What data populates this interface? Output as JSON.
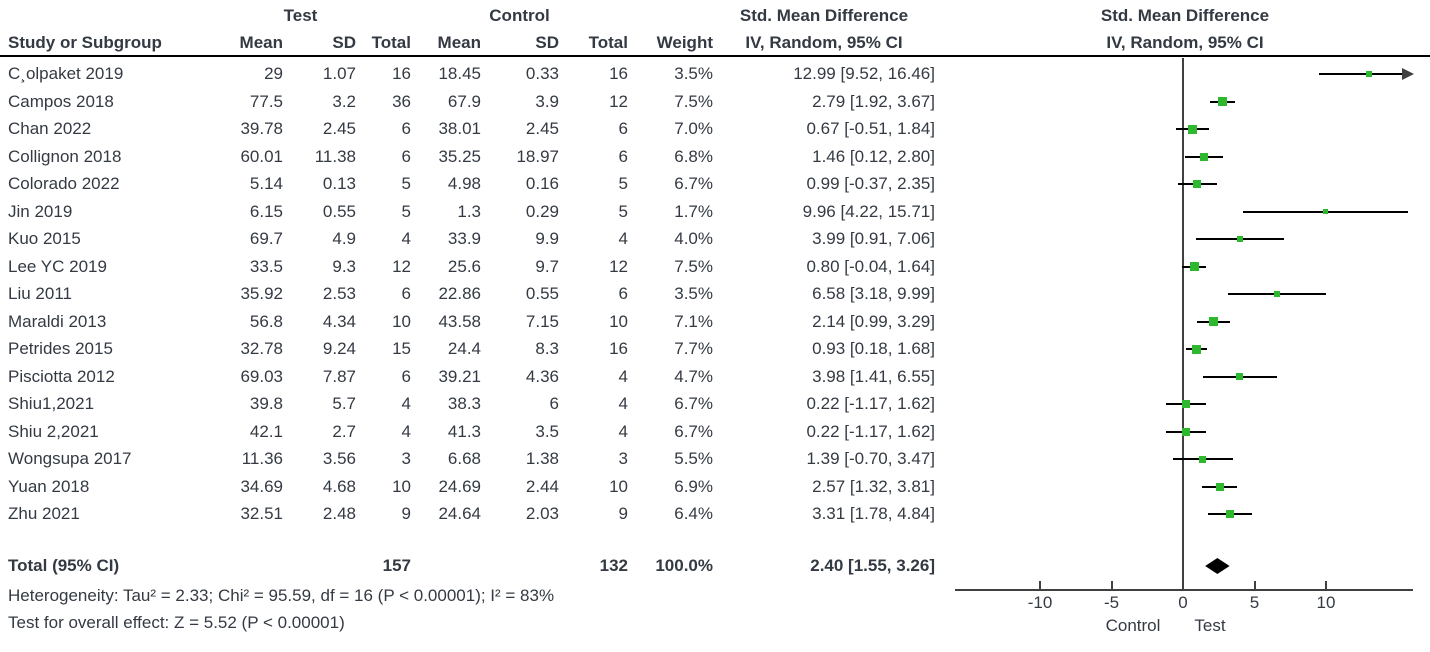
{
  "meta": {
    "background_color": "#ffffff",
    "text_color": "#343a43",
    "marker_color": "#2eb82e",
    "line_color": "#000000",
    "axis_color": "#404040"
  },
  "table": {
    "group_test": "Test",
    "group_control": "Control",
    "col_study": "Study or Subgroup",
    "col_mean": "Mean",
    "col_sd": "SD",
    "col_total": "Total",
    "col_weight": "Weight",
    "effect_header_line1": "Std. Mean Difference",
    "effect_header_line2": "IV, Random, 95% CI",
    "plot_header_line1": "Std. Mean Difference",
    "plot_header_line2": "IV, Random, 95% CI",
    "total_row": {
      "label": "Total (95% CI)",
      "test_total": "157",
      "control_total": "132",
      "weight": "100.0%",
      "ci_text": "2.40 [1.55, 3.26]"
    },
    "footnotes": [
      "Heterogeneity: Tau² = 2.33; Chi² = 95.59, df = 16 (P < 0.00001); I² = 83%",
      "Test for overall effect: Z = 5.52 (P < 0.00001)"
    ]
  },
  "chart_data": {
    "type": "scatter",
    "subtype": "forest-plot",
    "title": "Std. Mean Difference  IV, Random, 95% CI",
    "x_ticks": [
      -10,
      -5,
      0,
      5,
      10
    ],
    "xlim": [
      -16,
      16.2
    ],
    "grid": false,
    "legend_position": "none",
    "x_axis_label_left": "Control",
    "x_axis_label_right": "Test",
    "rows": [
      {
        "study": "C¸olpaket 2019",
        "t_mean": "29",
        "t_sd": "1.07",
        "t_total": "16",
        "c_mean": "18.45",
        "c_sd": "0.33",
        "c_total": "16",
        "weight": "3.5%",
        "ci_text": "12.99 [9.52, 16.46]",
        "est": 12.99,
        "lo": 9.52,
        "hi": 16.46
      },
      {
        "study": "Campos 2018",
        "t_mean": "77.5",
        "t_sd": "3.2",
        "t_total": "36",
        "c_mean": "67.9",
        "c_sd": "3.9",
        "c_total": "12",
        "weight": "7.5%",
        "ci_text": "2.79 [1.92, 3.67]",
        "est": 2.79,
        "lo": 1.92,
        "hi": 3.67
      },
      {
        "study": "Chan 2022",
        "t_mean": "39.78",
        "t_sd": "2.45",
        "t_total": "6",
        "c_mean": "38.01",
        "c_sd": "2.45",
        "c_total": "6",
        "weight": "7.0%",
        "ci_text": "0.67 [-0.51, 1.84]",
        "est": 0.67,
        "lo": -0.51,
        "hi": 1.84
      },
      {
        "study": "Collignon 2018",
        "t_mean": "60.01",
        "t_sd": "11.38",
        "t_total": "6",
        "c_mean": "35.25",
        "c_sd": "18.97",
        "c_total": "6",
        "weight": "6.8%",
        "ci_text": "1.46 [0.12, 2.80]",
        "est": 1.46,
        "lo": 0.12,
        "hi": 2.8
      },
      {
        "study": "Colorado 2022",
        "t_mean": "5.14",
        "t_sd": "0.13",
        "t_total": "5",
        "c_mean": "4.98",
        "c_sd": "0.16",
        "c_total": "5",
        "weight": "6.7%",
        "ci_text": "0.99 [-0.37, 2.35]",
        "est": 0.99,
        "lo": -0.37,
        "hi": 2.35
      },
      {
        "study": "Jin 2019",
        "t_mean": "6.15",
        "t_sd": "0.55",
        "t_total": "5",
        "c_mean": "1.3",
        "c_sd": "0.29",
        "c_total": "5",
        "weight": "1.7%",
        "ci_text": "9.96 [4.22, 15.71]",
        "est": 9.96,
        "lo": 4.22,
        "hi": 15.71
      },
      {
        "study": "Kuo 2015",
        "t_mean": "69.7",
        "t_sd": "4.9",
        "t_total": "4",
        "c_mean": "33.9",
        "c_sd": "9.9",
        "c_total": "4",
        "weight": "4.0%",
        "ci_text": "3.99 [0.91, 7.06]",
        "est": 3.99,
        "lo": 0.91,
        "hi": 7.06
      },
      {
        "study": "Lee YC 2019",
        "t_mean": "33.5",
        "t_sd": "9.3",
        "t_total": "12",
        "c_mean": "25.6",
        "c_sd": "9.7",
        "c_total": "12",
        "weight": "7.5%",
        "ci_text": "0.80 [-0.04, 1.64]",
        "est": 0.8,
        "lo": -0.04,
        "hi": 1.64
      },
      {
        "study": "Liu 2011",
        "t_mean": "35.92",
        "t_sd": "2.53",
        "t_total": "6",
        "c_mean": "22.86",
        "c_sd": "0.55",
        "c_total": "6",
        "weight": "3.5%",
        "ci_text": "6.58 [3.18, 9.99]",
        "est": 6.58,
        "lo": 3.18,
        "hi": 9.99
      },
      {
        "study": "Maraldi 2013",
        "t_mean": "56.8",
        "t_sd": "4.34",
        "t_total": "10",
        "c_mean": "43.58",
        "c_sd": "7.15",
        "c_total": "10",
        "weight": "7.1%",
        "ci_text": "2.14 [0.99, 3.29]",
        "est": 2.14,
        "lo": 0.99,
        "hi": 3.29
      },
      {
        "study": "Petrides 2015",
        "t_mean": "32.78",
        "t_sd": "9.24",
        "t_total": "15",
        "c_mean": "24.4",
        "c_sd": "8.3",
        "c_total": "16",
        "weight": "7.7%",
        "ci_text": "0.93 [0.18, 1.68]",
        "est": 0.93,
        "lo": 0.18,
        "hi": 1.68
      },
      {
        "study": "Pisciotta 2012",
        "t_mean": "69.03",
        "t_sd": "7.87",
        "t_total": "6",
        "c_mean": "39.21",
        "c_sd": "4.36",
        "c_total": "4",
        "weight": "4.7%",
        "ci_text": "3.98 [1.41, 6.55]",
        "est": 3.98,
        "lo": 1.41,
        "hi": 6.55
      },
      {
        "study": "Shiu1,2021",
        "t_mean": "39.8",
        "t_sd": "5.7",
        "t_total": "4",
        "c_mean": "38.3",
        "c_sd": "6",
        "c_total": "4",
        "weight": "6.7%",
        "ci_text": "0.22 [-1.17, 1.62]",
        "est": 0.22,
        "lo": -1.17,
        "hi": 1.62
      },
      {
        "study": "Shiu 2,2021",
        "t_mean": "42.1",
        "t_sd": "2.7",
        "t_total": "4",
        "c_mean": "41.3",
        "c_sd": "3.5",
        "c_total": "4",
        "weight": "6.7%",
        "ci_text": "0.22 [-1.17, 1.62]",
        "est": 0.22,
        "lo": -1.17,
        "hi": 1.62
      },
      {
        "study": "Wongsupa 2017",
        "t_mean": "11.36",
        "t_sd": "3.56",
        "t_total": "3",
        "c_mean": "6.68",
        "c_sd": "1.38",
        "c_total": "3",
        "weight": "5.5%",
        "ci_text": "1.39 [-0.70, 3.47]",
        "est": 1.39,
        "lo": -0.7,
        "hi": 3.47
      },
      {
        "study": "Yuan 2018",
        "t_mean": "34.69",
        "t_sd": "4.68",
        "t_total": "10",
        "c_mean": "24.69",
        "c_sd": "2.44",
        "c_total": "10",
        "weight": "6.9%",
        "ci_text": "2.57 [1.32, 3.81]",
        "est": 2.57,
        "lo": 1.32,
        "hi": 3.81
      },
      {
        "study": "Zhu 2021",
        "t_mean": "32.51",
        "t_sd": "2.48",
        "t_total": "9",
        "c_mean": "24.64",
        "c_sd": "2.03",
        "c_total": "9",
        "weight": "6.4%",
        "ci_text": "3.31 [1.78, 4.84]",
        "est": 3.31,
        "lo": 1.78,
        "hi": 4.84
      }
    ],
    "total": {
      "est": 2.4,
      "lo": 1.55,
      "hi": 3.26
    }
  }
}
